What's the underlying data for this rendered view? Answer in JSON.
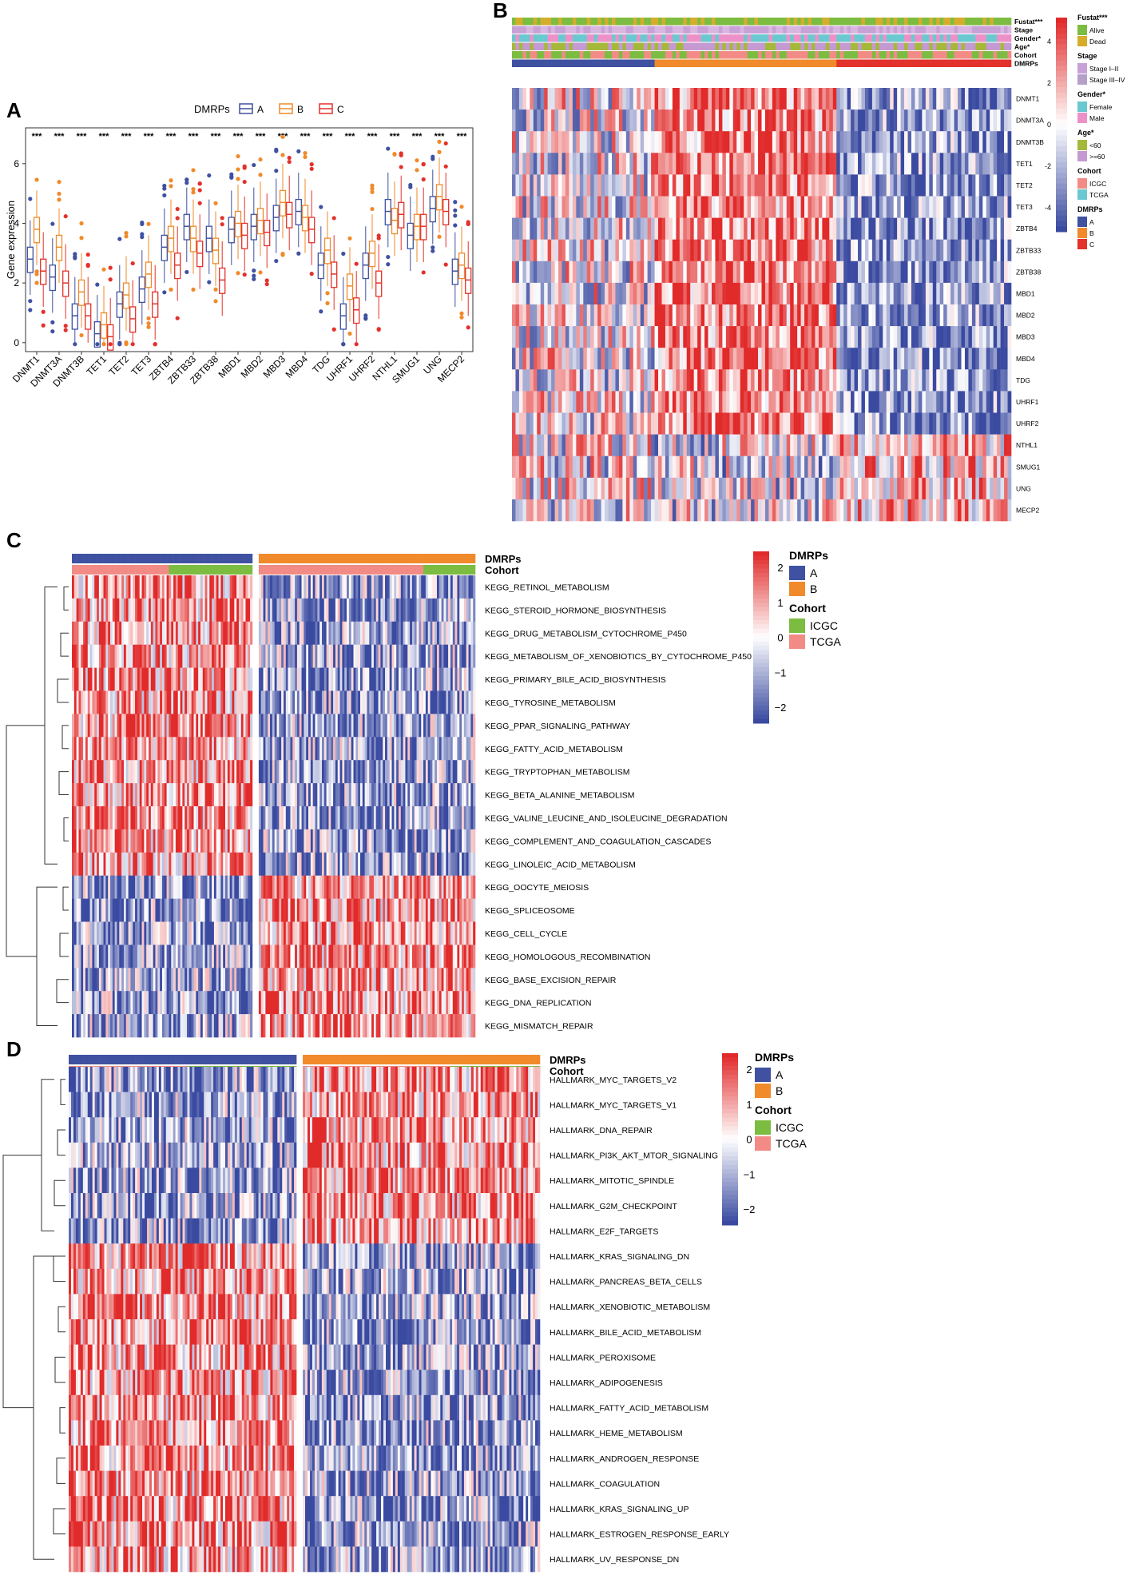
{
  "colors": {
    "A": "#3f51a0",
    "B": "#f08a2b",
    "C": "#e3312b",
    "ICGC": "#7cbc41",
    "TCGA": "#f28b85",
    "Alive": "#7cbc41",
    "Dead": "#d6ad2b",
    "StageI_II": "#c8a2d6",
    "StageIII_IV": "#b5a0c8",
    "Female": "#6ac8d0",
    "Male": "#ee90c8",
    "AgeLt60": "#a6b83a",
    "AgeGe60": "#c59ad2",
    "heat_low": "#3a4aa0",
    "heat_mid": "#ffffff",
    "heat_high": "#e12a2a"
  },
  "panels": {
    "A": {
      "label": "A",
      "chart_data": {
        "type": "box",
        "ylabel": "Gene expression",
        "ylim": [
          -0.3,
          7.2
        ],
        "yticks": [
          "0",
          "2",
          "4",
          "6"
        ],
        "legend_title": "DMRPs",
        "groups": [
          "A",
          "B",
          "C"
        ],
        "significance": "***",
        "categories": [
          "DNMT1",
          "DNMT3A",
          "DNMT3B",
          "TET1",
          "TET2",
          "TET3",
          "ZBTB4",
          "ZBTB33",
          "ZBTB38",
          "MBD1",
          "MBD2",
          "MBD3",
          "MBD4",
          "TDG",
          "UHRF1",
          "UHRF2",
          "NTHL1",
          "SMUG1",
          "UNG",
          "MECP2"
        ],
        "series": [
          {
            "name": "A",
            "medians": [
              2.8,
              2.2,
              0.9,
              0.3,
              1.3,
              1.8,
              3.2,
              3.9,
              3.5,
              3.8,
              3.9,
              4.2,
              4.4,
              2.6,
              0.9,
              2.6,
              4.4,
              3.6,
              4.5,
              2.4
            ]
          },
          {
            "name": "B",
            "medians": [
              3.8,
              3.2,
              1.7,
              0.6,
              1.6,
              2.3,
              3.5,
              3.5,
              3.1,
              4.0,
              4.1,
              4.7,
              4.2,
              3.1,
              1.9,
              3.0,
              4.1,
              3.9,
              4.9,
              2.6
            ]
          },
          {
            "name": "C",
            "medians": [
              2.4,
              2.0,
              0.9,
              0.2,
              0.8,
              1.3,
              2.6,
              3.0,
              2.1,
              3.6,
              3.7,
              4.3,
              3.8,
              2.3,
              1.1,
              2.0,
              4.3,
              3.9,
              4.4,
              2.1
            ]
          }
        ]
      }
    },
    "B": {
      "label": "B",
      "chart_data": {
        "type": "heatmap",
        "annotation_rows": [
          "Fustat***",
          "Stage",
          "Gender*",
          "Age*",
          "Cohort",
          "DMRPs"
        ],
        "rows": [
          "DNMT1",
          "DNMT3A",
          "DNMT3B",
          "TET1",
          "TET2",
          "TET3",
          "ZBTB4",
          "ZBTB33",
          "ZBTB38",
          "MBD1",
          "MBD2",
          "MBD3",
          "MBD4",
          "TDG",
          "UHRF1",
          "UHRF2",
          "NTHL1",
          "SMUG1",
          "UNG",
          "MECP2"
        ],
        "colorbar_ticks": [
          "4",
          "2",
          "0",
          "-2",
          "-4"
        ],
        "legend": [
          {
            "title": "Fustat***",
            "items": [
              "Alive",
              "Dead"
            ]
          },
          {
            "title": "Stage",
            "items": [
              "Stage I–II",
              "Stage III–IV"
            ]
          },
          {
            "title": "Gender*",
            "items": [
              "Female",
              "Male"
            ]
          },
          {
            "title": "Age*",
            "items": [
              "<60",
              ">=60"
            ]
          },
          {
            "title": "Cohort",
            "items": [
              "ICGC",
              "TCGA"
            ]
          },
          {
            "title": "DMRPs",
            "items": [
              "A",
              "B",
              "C"
            ]
          }
        ]
      }
    },
    "C": {
      "label": "C",
      "chart_data": {
        "type": "heatmap",
        "annotation_rows": [
          "DMRPs",
          "Cohort"
        ],
        "rows": [
          "KEGG_RETINOL_METABOLISM",
          "KEGG_STEROID_HORMONE_BIOSYNTHESIS",
          "KEGG_DRUG_METABOLISM_CYTOCHROME_P450",
          "KEGG_METABOLISM_OF_XENOBIOTICS_BY_CYTOCHROME_P450",
          "KEGG_PRIMARY_BILE_ACID_BIOSYNTHESIS",
          "KEGG_TYROSINE_METABOLISM",
          "KEGG_PPAR_SIGNALING_PATHWAY",
          "KEGG_FATTY_ACID_METABOLISM",
          "KEGG_TRYPTOPHAN_METABOLISM",
          "KEGG_BETA_ALANINE_METABOLISM",
          "KEGG_VALINE_LEUCINE_AND_ISOLEUCINE_DEGRADATION",
          "KEGG_COMPLEMENT_AND_COAGULATION_CASCADES",
          "KEGG_LINOLEIC_ACID_METABOLISM",
          "KEGG_OOCYTE_MEIOSIS",
          "KEGG_SPLICEOSOME",
          "KEGG_CELL_CYCLE",
          "KEGG_HOMOLOGOUS_RECOMBINATION",
          "KEGG_BASE_EXCISION_REPAIR",
          "KEGG_DNA_REPLICATION",
          "KEGG_MISMATCH_REPAIR"
        ],
        "row_group_split": 13,
        "colorbar_ticks": [
          "2",
          "1",
          "0",
          "−1",
          "−2"
        ],
        "legend": [
          {
            "title": "DMRPs",
            "items": [
              "A",
              "B"
            ]
          },
          {
            "title": "Cohort",
            "items": [
              "ICGC",
              "TCGA"
            ]
          }
        ]
      }
    },
    "D": {
      "label": "D",
      "chart_data": {
        "type": "heatmap",
        "annotation_rows": [
          "DMRPs",
          "Cohort"
        ],
        "rows": [
          "HALLMARK_MYC_TARGETS_V2",
          "HALLMARK_MYC_TARGETS_V1",
          "HALLMARK_DNA_REPAIR",
          "HALLMARK_PI3K_AKT_MTOR_SIGNALING",
          "HALLMARK_MITOTIC_SPINDLE",
          "HALLMARK_G2M_CHECKPOINT",
          "HALLMARK_E2F_TARGETS",
          "HALLMARK_KRAS_SIGNALING_DN",
          "HALLMARK_PANCREAS_BETA_CELLS",
          "HALLMARK_XENOBIOTIC_METABOLISM",
          "HALLMARK_BILE_ACID_METABOLISM",
          "HALLMARK_PEROXISOME",
          "HALLMARK_ADIPOGENESIS",
          "HALLMARK_FATTY_ACID_METABOLISM",
          "HALLMARK_HEME_METABOLISM",
          "HALLMARK_ANDROGEN_RESPONSE",
          "HALLMARK_COAGULATION",
          "HALLMARK_KRAS_SIGNALING_UP",
          "HALLMARK_ESTROGEN_RESPONSE_EARLY",
          "HALLMARK_UV_RESPONSE_DN"
        ],
        "row_group_split": 7,
        "colorbar_ticks": [
          "2",
          "1",
          "0",
          "−1",
          "−2"
        ],
        "legend": [
          {
            "title": "DMRPs",
            "items": [
              "A",
              "B"
            ]
          },
          {
            "title": "Cohort",
            "items": [
              "ICGC",
              "TCGA"
            ]
          }
        ]
      }
    }
  }
}
